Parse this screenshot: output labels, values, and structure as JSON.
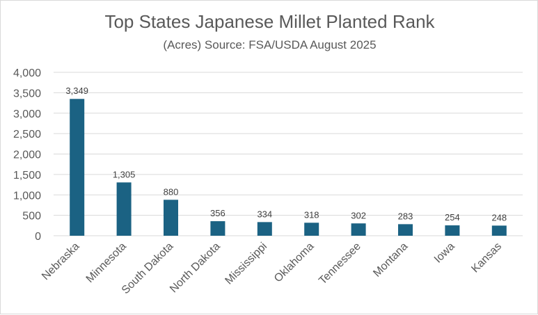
{
  "chart_data": {
    "type": "bar",
    "title": "Top States Japanese Millet Planted Rank",
    "subtitle": "(Acres) Source: FSA/USDA August 2025",
    "xlabel": "",
    "ylabel": "",
    "categories": [
      "Nebraska",
      "Minnesota",
      "South Dakota",
      "North Dakota",
      "Mississippi",
      "Oklahoma",
      "Tennessee",
      "Montana",
      "Iowa",
      "Kansas"
    ],
    "values": [
      3349,
      1305,
      880,
      356,
      334,
      318,
      302,
      283,
      254,
      248
    ],
    "data_labels": [
      "3,349",
      "1,305",
      "880",
      "356",
      "334",
      "318",
      "302",
      "283",
      "254",
      "248"
    ],
    "ylim": [
      0,
      4000
    ],
    "yticks": [
      0,
      500,
      1000,
      1500,
      2000,
      2500,
      3000,
      3500,
      4000
    ],
    "ytick_labels": [
      "0",
      "500",
      "1,000",
      "1,500",
      "2,000",
      "2,500",
      "3,000",
      "3,500",
      "4,000"
    ],
    "grid": true,
    "legend": "none",
    "bar_color": "#1b6283",
    "grid_color": "#d9d9d9"
  }
}
